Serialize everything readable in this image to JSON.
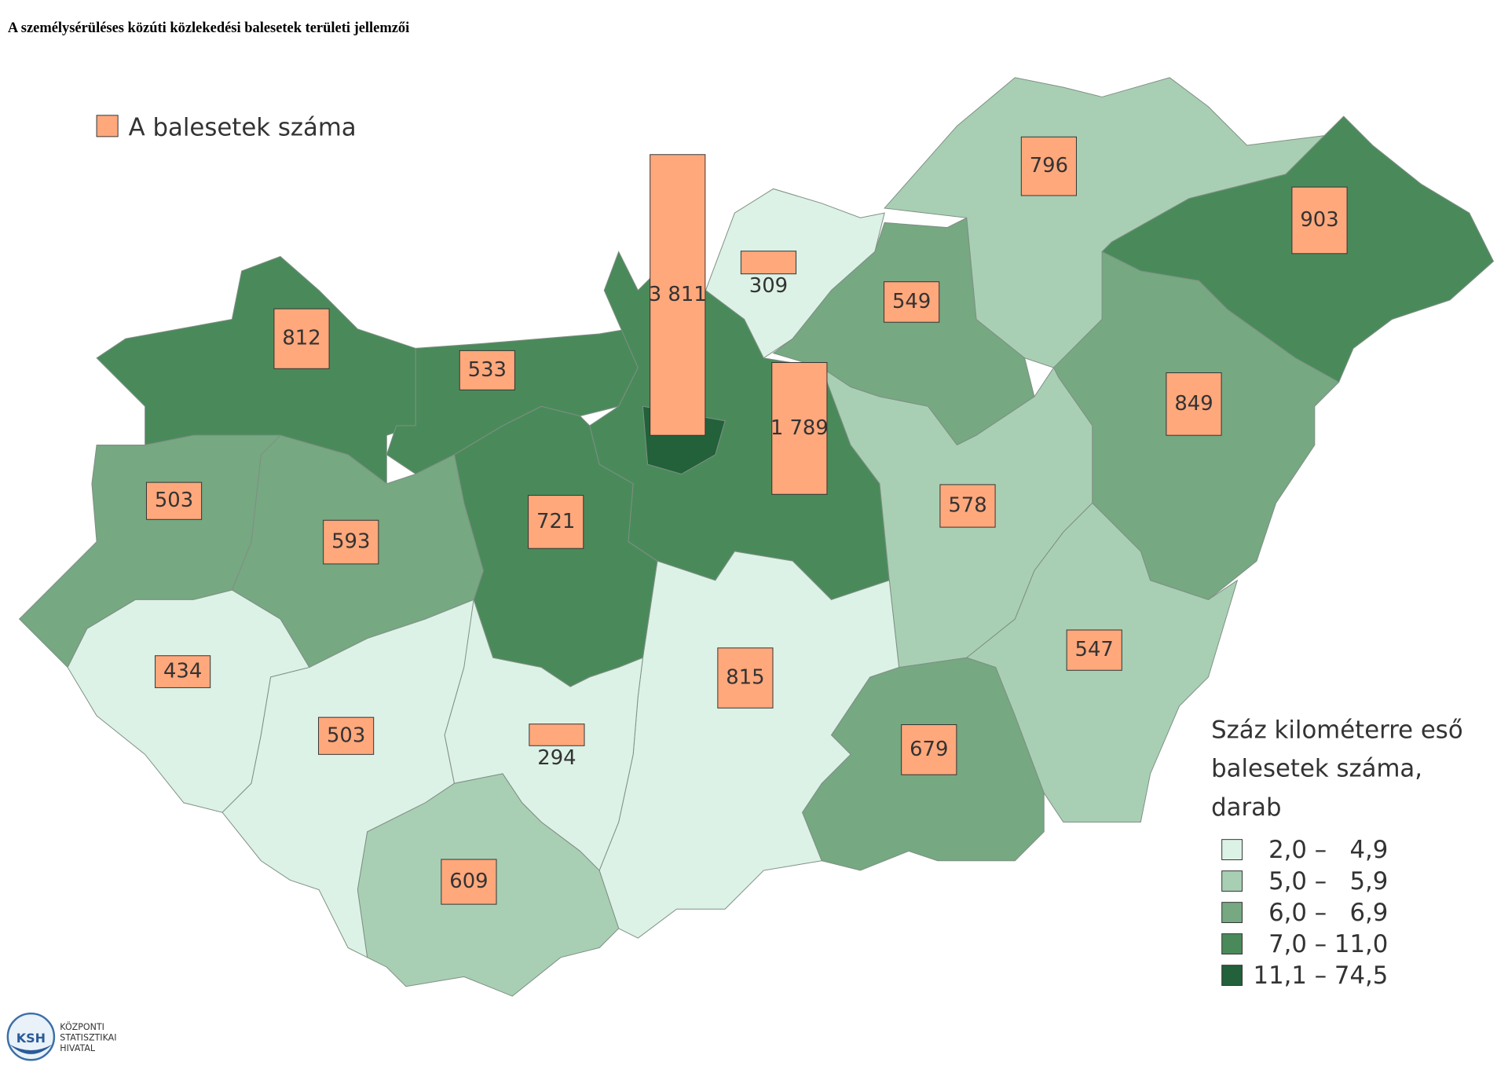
{
  "title": "A személysérüléses közúti közlekedési balesetek területi jellemzői",
  "bar_legend": {
    "label": "A balesetek száma",
    "color": "#ffa87c"
  },
  "legend_title": [
    "Száz kilométerre eső",
    "balesetek száma,",
    "darab"
  ],
  "classes": [
    {
      "label": "2,0 –   4,9",
      "color": "#dcf2e6"
    },
    {
      "label": "5,0 –   5,9",
      "color": "#a8cfb3"
    },
    {
      "label": "6,0 –   6,9",
      "color": "#76a882"
    },
    {
      "label": "7,0 – 11,0",
      "color": "#4a8a5a"
    },
    {
      "label": "11,1 – 74,5",
      "color": "#22613a"
    }
  ],
  "regions": [
    {
      "value": 812,
      "value_label": "812",
      "color": "#4a8a5a"
    },
    {
      "value": 533,
      "value_label": "533",
      "color": "#4a8a5a"
    },
    {
      "value": 1789,
      "value_label": "1 789",
      "color": "#4a8a5a"
    },
    {
      "value": 3811,
      "value_label": "3 811",
      "color": "#22613a"
    },
    {
      "value": 309,
      "value_label": "309",
      "color": "#dcf2e6"
    },
    {
      "value": 549,
      "value_label": "549",
      "color": "#76a882"
    },
    {
      "value": 796,
      "value_label": "796",
      "color": "#a8cfb3"
    },
    {
      "value": 903,
      "value_label": "903",
      "color": "#4a8a5a"
    },
    {
      "value": 849,
      "value_label": "849",
      "color": "#76a882"
    },
    {
      "value": 578,
      "value_label": "578",
      "color": "#a8cfb3"
    },
    {
      "value": 547,
      "value_label": "547",
      "color": "#a8cfb3"
    },
    {
      "value": 679,
      "value_label": "679",
      "color": "#76a882"
    },
    {
      "value": 815,
      "value_label": "815",
      "color": "#dcf2e6"
    },
    {
      "value": 721,
      "value_label": "721",
      "color": "#4a8a5a"
    },
    {
      "value": 593,
      "value_label": "593",
      "color": "#76a882"
    },
    {
      "value": 503,
      "value_label": "503",
      "color": "#76a882"
    },
    {
      "value": 434,
      "value_label": "434",
      "color": "#dcf2e6"
    },
    {
      "value": 503,
      "value_label": "503",
      "color": "#dcf2e6"
    },
    {
      "value": 294,
      "value_label": "294",
      "color": "#dcf2e6"
    },
    {
      "value": 609,
      "value_label": "609",
      "color": "#a8cfb3"
    }
  ],
  "logo": {
    "mark": "KSH",
    "lines": [
      "KÖZPONTI",
      "STATISZTIKAI",
      "HIVATAL"
    ]
  }
}
